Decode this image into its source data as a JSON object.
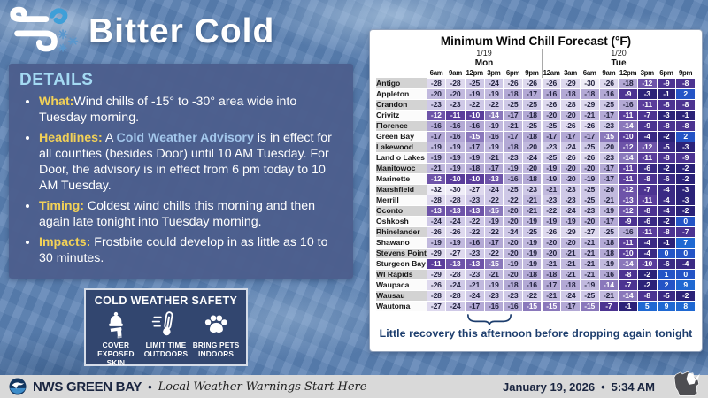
{
  "header": {
    "title": "Bitter Cold"
  },
  "details": {
    "heading": "DETAILS",
    "bullets": [
      {
        "label": "What:",
        "parts": [
          {
            "t": "Wind chills of -15° to -30° area wide into Tuesday morning."
          }
        ]
      },
      {
        "label": "Headlines:",
        "parts": [
          {
            "t": " A "
          },
          {
            "t": "Cold Weather Advisory",
            "hl": true
          },
          {
            "t": " is in effect for all counties (besides Door) until 10 AM Tuesday. For Door, the advisory is in effect from 6 pm today to 10 AM Tuesday."
          }
        ]
      },
      {
        "label": "Timing:",
        "parts": [
          {
            "t": " Coldest wind chills this morning and then again late tonight into Tuesday morning."
          }
        ]
      },
      {
        "label": "Impacts:",
        "parts": [
          {
            "t": " Frostbite could develop in as little as 10 to 30 minutes."
          }
        ]
      }
    ]
  },
  "safety": {
    "title": "COLD WEATHER SAFETY",
    "items": [
      {
        "icon": "winter-hat-scarf-icon",
        "label": "COVER EXPOSED SKIN"
      },
      {
        "icon": "thermometer-icon",
        "label": "LIMIT TIME OUTDOORS"
      },
      {
        "icon": "paw-icon",
        "label": "BRING PETS INDOORS"
      }
    ]
  },
  "chart_data": {
    "type": "heatmap",
    "title": "Minimum Wind Chill Forecast (°F)",
    "day_groups": [
      {
        "date": "1/19",
        "day": "Mon",
        "cols": 6
      },
      {
        "date": "1/20",
        "day": "Tue",
        "cols": 8
      }
    ],
    "time_cols": [
      "6am",
      "9am",
      "12pm",
      "3pm",
      "6pm",
      "9pm",
      "12am",
      "3am",
      "6am",
      "9am",
      "12pm",
      "3pm",
      "6pm",
      "9pm"
    ],
    "rows": [
      {
        "city": "Antigo",
        "values": [
          -28,
          -28,
          -25,
          -24,
          -26,
          -26,
          -26,
          -29,
          -30,
          -26,
          -18,
          -12,
          -9,
          -8
        ]
      },
      {
        "city": "Appleton",
        "values": [
          -20,
          -20,
          -19,
          -19,
          -18,
          -17,
          -16,
          -18,
          -18,
          -16,
          -9,
          -3,
          -1,
          2
        ]
      },
      {
        "city": "Crandon",
        "values": [
          -23,
          -23,
          -22,
          -22,
          -25,
          -25,
          -26,
          -28,
          -29,
          -25,
          -16,
          -11,
          -8,
          -8
        ]
      },
      {
        "city": "Crivitz",
        "values": [
          -12,
          -11,
          -10,
          -14,
          -17,
          -18,
          -20,
          -20,
          -21,
          -17,
          -11,
          -7,
          -3,
          -1
        ]
      },
      {
        "city": "Florence",
        "values": [
          -16,
          -16,
          -16,
          -19,
          -21,
          -25,
          -25,
          -26,
          -26,
          -23,
          -14,
          -9,
          -8,
          -8
        ]
      },
      {
        "city": "Green Bay",
        "values": [
          -17,
          -16,
          -15,
          -16,
          -17,
          -18,
          -17,
          -17,
          -17,
          -15,
          -10,
          -4,
          -2,
          2
        ]
      },
      {
        "city": "Lakewood",
        "values": [
          -19,
          -19,
          -17,
          -19,
          -18,
          -20,
          -23,
          -24,
          -25,
          -20,
          -12,
          -12,
          -5,
          -3
        ]
      },
      {
        "city": "Land o Lakes",
        "values": [
          -19,
          -19,
          -19,
          -21,
          -23,
          -24,
          -25,
          -26,
          -26,
          -23,
          -14,
          -11,
          -8,
          -9
        ]
      },
      {
        "city": "Manitowoc",
        "values": [
          -21,
          -19,
          -18,
          -17,
          -19,
          -20,
          -19,
          -20,
          -20,
          -17,
          -11,
          -6,
          -2,
          -2
        ]
      },
      {
        "city": "Marinette",
        "values": [
          -12,
          -10,
          -10,
          -13,
          -16,
          -18,
          -19,
          -20,
          -19,
          -17,
          -11,
          -8,
          -6,
          -2
        ]
      },
      {
        "city": "Marshfield",
        "values": [
          -32,
          -30,
          -27,
          -24,
          -25,
          -23,
          -21,
          -23,
          -25,
          -20,
          -12,
          -7,
          -4,
          -3
        ]
      },
      {
        "city": "Merrill",
        "values": [
          -28,
          -28,
          -23,
          -22,
          -22,
          -21,
          -23,
          -23,
          -25,
          -21,
          -13,
          -11,
          -4,
          -3
        ]
      },
      {
        "city": "Oconto",
        "values": [
          -13,
          -13,
          -13,
          -15,
          -20,
          -21,
          -22,
          -24,
          -23,
          -19,
          -12,
          -8,
          -4,
          -2
        ]
      },
      {
        "city": "Oshkosh",
        "values": [
          -24,
          -24,
          -22,
          -19,
          -20,
          -19,
          -19,
          -19,
          -20,
          -17,
          -9,
          -6,
          -2,
          0
        ]
      },
      {
        "city": "Rhinelander",
        "values": [
          -26,
          -26,
          -22,
          -22,
          -24,
          -25,
          -26,
          -29,
          -27,
          -25,
          -16,
          -11,
          -8,
          -7
        ]
      },
      {
        "city": "Shawano",
        "values": [
          -19,
          -19,
          -16,
          -17,
          -20,
          -19,
          -20,
          -20,
          -21,
          -18,
          -11,
          -4,
          -1,
          7
        ]
      },
      {
        "city": "Stevens Point",
        "values": [
          -29,
          -27,
          -23,
          -22,
          -20,
          -19,
          -20,
          -21,
          -21,
          -18,
          -10,
          -4,
          0,
          0
        ]
      },
      {
        "city": "Sturgeon Bay",
        "values": [
          -11,
          -13,
          -13,
          -15,
          -19,
          -19,
          -21,
          -21,
          -21,
          -19,
          -14,
          -10,
          -6,
          -4
        ]
      },
      {
        "city": "WI Rapids",
        "values": [
          -29,
          -28,
          -23,
          -21,
          -20,
          -18,
          -18,
          -21,
          -21,
          -16,
          -8,
          -2,
          1,
          0
        ]
      },
      {
        "city": "Waupaca",
        "values": [
          -26,
          -24,
          -21,
          -19,
          -18,
          -16,
          -17,
          -18,
          -19,
          -14,
          -7,
          -2,
          2,
          9
        ]
      },
      {
        "city": "Wausau",
        "values": [
          -28,
          -28,
          -24,
          -23,
          -23,
          -22,
          -21,
          -24,
          -25,
          -21,
          -14,
          -8,
          -5,
          -2
        ]
      },
      {
        "city": "Wautoma",
        "values": [
          -27,
          -24,
          -17,
          -16,
          -16,
          -15,
          -15,
          -17,
          -15,
          -7,
          -1,
          5,
          9,
          8
        ]
      }
    ],
    "annotation": "Little recovery this afternoon before dropping again tonight",
    "color_scale": [
      {
        "min": 5,
        "bg": "#1f68d2",
        "fg": "#ffffff"
      },
      {
        "min": 0,
        "bg": "#2454c6",
        "fg": "#ffffff"
      },
      {
        "min": -3,
        "bg": "#2b2278",
        "fg": "#ffffff"
      },
      {
        "min": -6,
        "bg": "#3a2a84",
        "fg": "#ffffff"
      },
      {
        "min": -9,
        "bg": "#4c3391",
        "fg": "#ffffff"
      },
      {
        "min": -11,
        "bg": "#5a3d9b",
        "fg": "#ffffff"
      },
      {
        "min": -13,
        "bg": "#6e54a9",
        "fg": "#ffffff"
      },
      {
        "min": -15,
        "bg": "#8a78bb",
        "fg": "#ffffff"
      },
      {
        "min": -18,
        "bg": "#b3a9d5",
        "fg": "#23233f"
      },
      {
        "min": -21,
        "bg": "#c1b9de",
        "fg": "#23233f"
      },
      {
        "min": -25,
        "bg": "#cfc9e7",
        "fg": "#23233f"
      },
      {
        "min": -29,
        "bg": "#ded9ee",
        "fg": "#23233f"
      },
      {
        "min": -99,
        "bg": "#efedf7",
        "fg": "#23233f"
      }
    ],
    "row_label_colors": {
      "even": "#d3d3d3",
      "odd": "#fbfbfb"
    }
  },
  "footer": {
    "station": "NWS GREEN BAY",
    "separator": "•",
    "tagline": "Local Weather Warnings Start Here",
    "date": "January 19, 2026",
    "time_separator": "•",
    "time": "5:34 AM"
  }
}
